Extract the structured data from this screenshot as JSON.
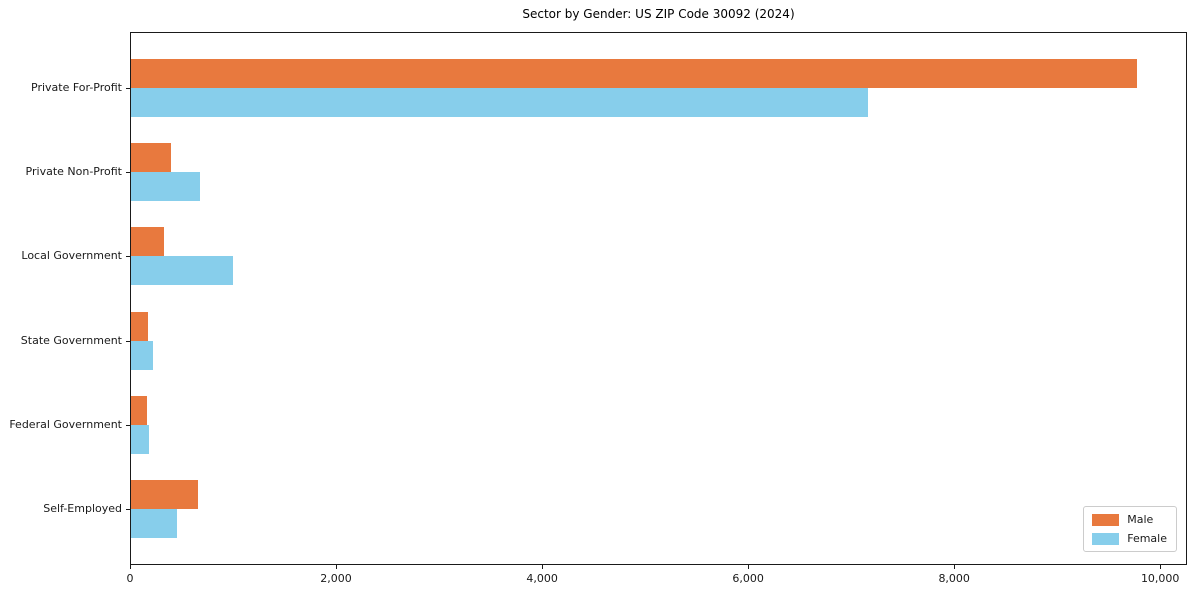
{
  "title": "Sector by Gender: US ZIP Code 30092 (2024)",
  "chart_data": {
    "type": "bar",
    "orientation": "horizontal",
    "title": "Sector by Gender: US ZIP Code 30092 (2024)",
    "categories": [
      "Private For-Profit",
      "Private Non-Profit",
      "Local Government",
      "State Government",
      "Federal Government",
      "Self-Employed"
    ],
    "series": [
      {
        "name": "Male",
        "color": "#e8793e",
        "values": [
          9760,
          390,
          320,
          160,
          155,
          650
        ]
      },
      {
        "name": "Female",
        "color": "#87ceeb",
        "values": [
          7150,
          670,
          990,
          215,
          175,
          445
        ]
      }
    ],
    "xlim": [
      0,
      10260
    ],
    "xticks": [
      0,
      2000,
      4000,
      6000,
      8000,
      10000
    ],
    "xtick_labels": [
      "0",
      "2,000",
      "4,000",
      "6,000",
      "8,000",
      "10,000"
    ],
    "xlabel": "",
    "ylabel": "",
    "grid": false,
    "legend": {
      "position": "lower right",
      "entries": [
        "Male",
        "Female"
      ]
    },
    "colors": {
      "male": "#e8793e",
      "female": "#87ceeb",
      "axis": "#1a1a1a",
      "background": "#ffffff"
    }
  }
}
